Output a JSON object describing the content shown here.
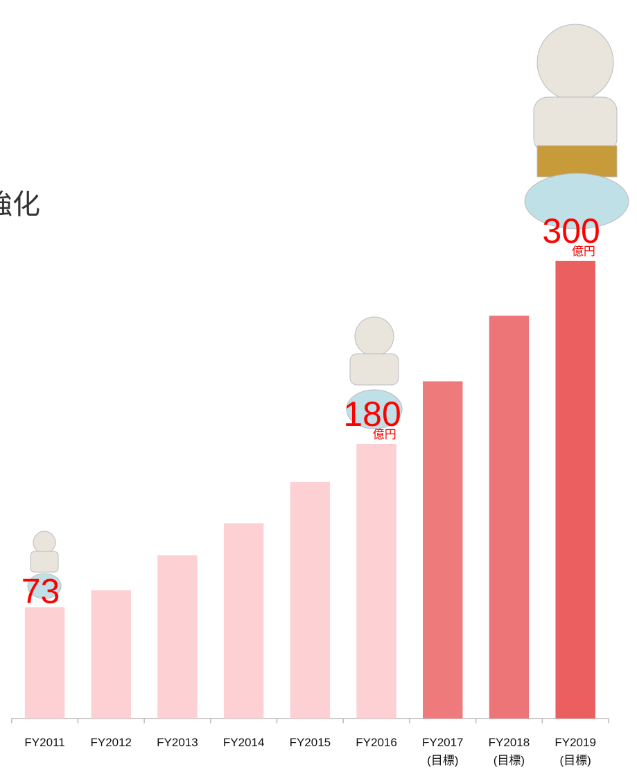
{
  "heading": "強化",
  "chart_data": {
    "type": "bar",
    "categories": [
      "FY2011",
      "FY2012",
      "FY2013",
      "FY2014",
      "FY2015",
      "FY2016",
      "FY2017\n(目標)",
      "FY2018\n(目標)",
      "FY2019\n(目標)"
    ],
    "values": [
      73,
      84,
      107,
      128,
      155,
      180,
      221,
      264,
      300
    ],
    "value_labels": [
      "73",
      null,
      null,
      null,
      null,
      "180",
      null,
      null,
      "300"
    ],
    "unit_labels": [
      null,
      null,
      null,
      null,
      null,
      "億円",
      null,
      null,
      "億円"
    ],
    "colors": [
      "#fdd0d3",
      "#fdd0d3",
      "#fdd0d3",
      "#fdd0d3",
      "#fdd0d3",
      "#fdd0d3",
      "#ee7a7c",
      "#ed7577",
      "#ec5f60"
    ],
    "label_color": "#ff0000",
    "ylim": [
      0,
      330
    ]
  }
}
